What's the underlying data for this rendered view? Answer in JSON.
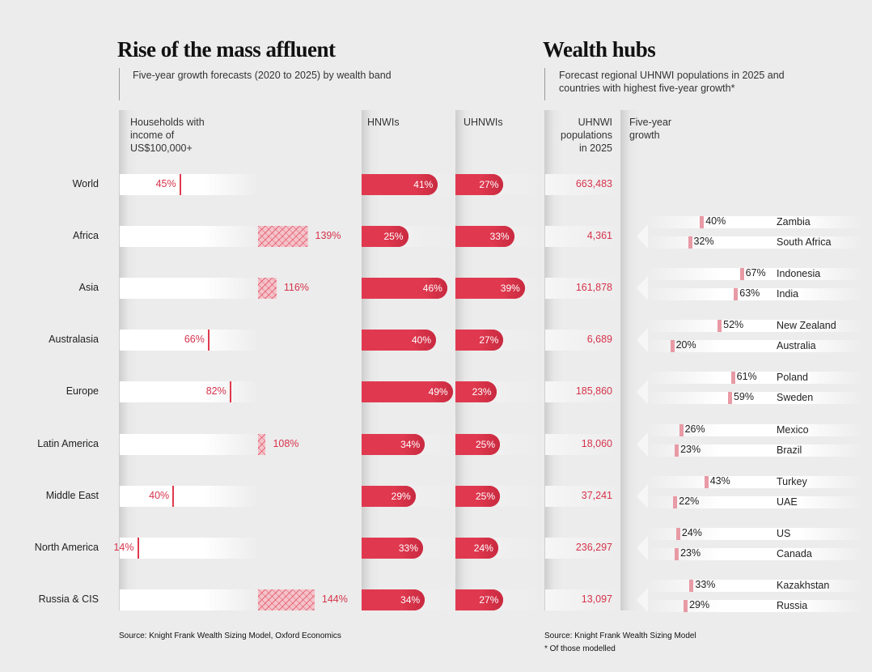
{
  "left": {
    "title": "Rise of the mass affluent",
    "subtitle": "Five-year growth forecasts (2020 to 2025) by wealth band",
    "col_households": "Households with income of US$100,000+",
    "col_hnwis": "HNWIs",
    "col_uhnwis": "UHNWIs",
    "source": "Source: Knight Frank Wealth Sizing Model, Oxford Economics"
  },
  "right": {
    "title": "Wealth hubs",
    "subtitle": "Forecast regional UHNWI populations in 2025 and countries with highest five-year growth*",
    "col_pop": "UHNWI populations in 2025",
    "col_growth": "Five-year growth",
    "source": "Source: Knight Frank Wealth Sizing Model",
    "footnote": "* Of those modelled"
  },
  "colors": {
    "accent": "#e0394f",
    "accent_text": "#d6334b",
    "background": "#ececec",
    "track": "#ffffff"
  },
  "chart_data": [
    {
      "type": "bar",
      "title": "Rise of the mass affluent",
      "subtitle": "Five-year growth forecasts (2020 to 2025) by wealth band",
      "categories": [
        "World",
        "Africa",
        "Asia",
        "Australasia",
        "Europe",
        "Latin America",
        "Middle East",
        "North America",
        "Russia & CIS"
      ],
      "series": [
        {
          "name": "Households with income of US$100,000+",
          "values": [
            45,
            139,
            116,
            66,
            82,
            108,
            40,
            14,
            144
          ],
          "labels": [
            "45%",
            "139%",
            "116%",
            "66%",
            "82%",
            "108%",
            "40%",
            "14%",
            "144%"
          ]
        },
        {
          "name": "HNWIs",
          "values": [
            41,
            25,
            46,
            40,
            49,
            34,
            29,
            33,
            34
          ],
          "labels": [
            "41%",
            "25%",
            "46%",
            "40%",
            "49%",
            "34%",
            "29%",
            "33%",
            "34%"
          ]
        },
        {
          "name": "UHNWIs",
          "values": [
            27,
            33,
            39,
            27,
            23,
            25,
            25,
            24,
            27
          ],
          "labels": [
            "27%",
            "33%",
            "39%",
            "27%",
            "23%",
            "25%",
            "25%",
            "24%",
            "27%"
          ]
        }
      ]
    },
    {
      "type": "table",
      "title": "Wealth hubs",
      "subtitle": "Forecast regional UHNWI populations in 2025 and countries with highest five-year growth*",
      "rows": [
        {
          "region": "World",
          "population": "663,483",
          "countries": []
        },
        {
          "region": "Africa",
          "population": "4,361",
          "countries": [
            {
              "name": "Zambia",
              "growth": 40,
              "label": "40%"
            },
            {
              "name": "South Africa",
              "growth": 32,
              "label": "32%"
            }
          ]
        },
        {
          "region": "Asia",
          "population": "161,878",
          "countries": [
            {
              "name": "Indonesia",
              "growth": 67,
              "label": "67%"
            },
            {
              "name": "India",
              "growth": 63,
              "label": "63%"
            }
          ]
        },
        {
          "region": "Australasia",
          "population": "6,689",
          "countries": [
            {
              "name": "New Zealand",
              "growth": 52,
              "label": "52%"
            },
            {
              "name": "Australia",
              "growth": 20,
              "label": "20%"
            }
          ]
        },
        {
          "region": "Europe",
          "population": "185,860",
          "countries": [
            {
              "name": "Poland",
              "growth": 61,
              "label": "61%"
            },
            {
              "name": "Sweden",
              "growth": 59,
              "label": "59%"
            }
          ]
        },
        {
          "region": "Latin America",
          "population": "18,060",
          "countries": [
            {
              "name": "Mexico",
              "growth": 26,
              "label": "26%"
            },
            {
              "name": "Brazil",
              "growth": 23,
              "label": "23%"
            }
          ]
        },
        {
          "region": "Middle East",
          "population": "37,241",
          "countries": [
            {
              "name": "Turkey",
              "growth": 43,
              "label": "43%"
            },
            {
              "name": "UAE",
              "growth": 22,
              "label": "22%"
            }
          ]
        },
        {
          "region": "North America",
          "population": "236,297",
          "countries": [
            {
              "name": "US",
              "growth": 24,
              "label": "24%"
            },
            {
              "name": "Canada",
              "growth": 23,
              "label": "23%"
            }
          ]
        },
        {
          "region": "Russia & CIS",
          "population": "13,097",
          "countries": [
            {
              "name": "Kazakhstan",
              "growth": 33,
              "label": "33%"
            },
            {
              "name": "Russia",
              "growth": 29,
              "label": "29%"
            }
          ]
        }
      ]
    }
  ]
}
